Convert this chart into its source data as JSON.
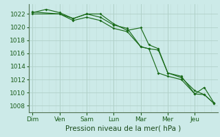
{
  "background_color": "#cceae8",
  "line_color": "#1a6b1a",
  "grid_color_major": "#b0d0c8",
  "grid_color_minor": "#c0dcd8",
  "xlabel": "Pression niveau de la mer( hPa )",
  "ylim": [
    1007,
    1023.5
  ],
  "yticks": [
    1008,
    1010,
    1012,
    1014,
    1016,
    1018,
    1020,
    1022
  ],
  "day_labels": [
    "Dim",
    "Ven",
    "Sam",
    "Lun",
    "Mar",
    "Mer",
    "Jeu"
  ],
  "day_x": [
    0,
    1,
    2,
    3,
    4,
    5,
    6
  ],
  "line1_x": [
    0.0,
    1.0,
    1.5,
    2.0,
    2.5,
    3.0,
    3.5,
    4.0,
    4.3,
    4.65,
    5.0,
    5.5,
    6.0,
    6.35,
    6.7
  ],
  "line1_y": [
    1022.3,
    1022.0,
    1021.3,
    1022.0,
    1022.0,
    1020.5,
    1019.5,
    1019.9,
    1017.3,
    1016.7,
    1013.0,
    1012.5,
    1009.8,
    1010.8,
    1008.5
  ],
  "line2_x": [
    0.0,
    0.5,
    1.0,
    1.5,
    2.0,
    2.5,
    3.0,
    3.5,
    4.0,
    4.3,
    4.65,
    5.0,
    5.5,
    6.0,
    6.35,
    6.7
  ],
  "line2_y": [
    1022.2,
    1022.7,
    1022.2,
    1021.3,
    1022.0,
    1021.5,
    1020.3,
    1019.8,
    1017.0,
    1016.7,
    1013.0,
    1012.5,
    1012.0,
    1009.8,
    1009.7,
    1008.4
  ],
  "line3_x": [
    0.0,
    1.0,
    1.5,
    2.0,
    2.5,
    3.0,
    3.5,
    4.0,
    4.3,
    4.65,
    5.0,
    5.5,
    6.0,
    6.35,
    6.7
  ],
  "line3_y": [
    1022.0,
    1022.0,
    1021.0,
    1021.5,
    1021.0,
    1019.8,
    1019.3,
    1017.0,
    1016.7,
    1016.5,
    1013.0,
    1012.3,
    1010.3,
    1009.7,
    1008.4
  ],
  "xlabel_fontsize": 7.5,
  "tick_fontsize": 6.5,
  "linewidth": 0.85,
  "markersize": 2.0
}
